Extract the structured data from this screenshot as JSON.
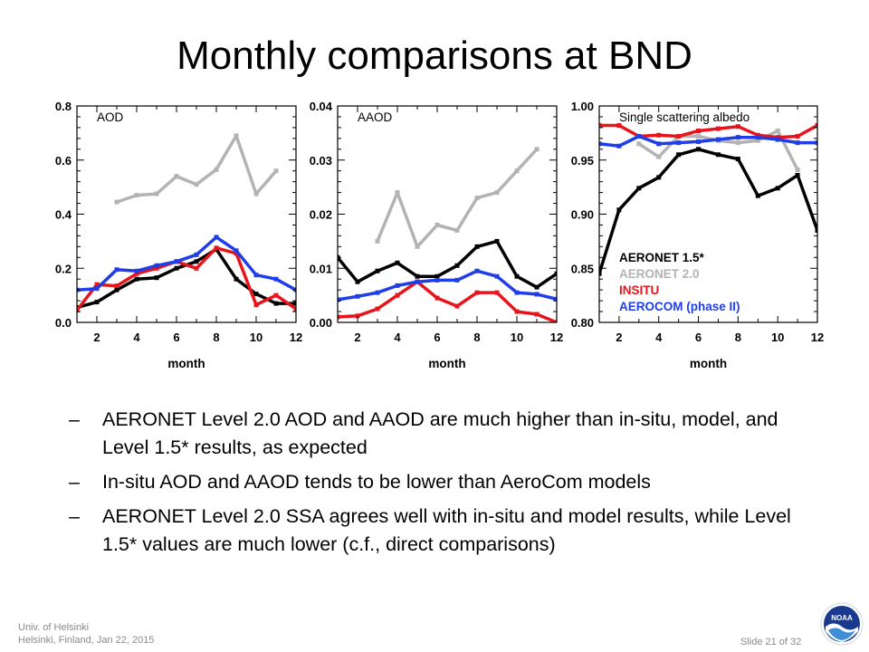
{
  "slide": {
    "title": "Monthly comparisons at BND",
    "bullets": [
      "AERONET Level 2.0 AOD and AAOD are much higher than in-situ, model, and Level 1.5* results, as expected",
      "In-situ AOD and AAOD tends to be lower than AeroCom models",
      "AERONET Level 2.0 SSA agrees well with in-situ and model results, while Level 1.5* values are much lower (c.f., direct comparisons)"
    ],
    "bullet_marker": "–",
    "footer": {
      "affiliation": "Univ. of Helsinki",
      "location_date": "Helsinki, Finland, Jan 22, 2015",
      "slide_number": "Slide 21 of 32"
    },
    "logo_text": "NOAA"
  },
  "chart_data": [
    {
      "type": "line",
      "title": "AOD",
      "xlabel": "month",
      "ylabel": "",
      "xlim": [
        1,
        12
      ],
      "ylim": [
        0.0,
        0.8
      ],
      "xticks": [
        2,
        4,
        6,
        8,
        10,
        12
      ],
      "yticks": [
        0.0,
        0.2,
        0.4,
        0.6,
        0.8
      ],
      "ytick_labels": [
        "0.0",
        "0.2",
        "0.4",
        "0.6",
        "0.8"
      ],
      "series": [
        {
          "name": "AERONET 1.5*",
          "color": "#000000",
          "x": [
            1,
            2,
            3,
            4,
            5,
            6,
            7,
            8,
            9,
            10,
            11,
            12
          ],
          "y": [
            0.055,
            0.075,
            0.12,
            0.16,
            0.165,
            0.2,
            0.225,
            0.27,
            0.16,
            0.105,
            0.07,
            0.07
          ]
        },
        {
          "name": "AERONET 2.0",
          "color": "#b3b3b3",
          "x": [
            3,
            4,
            5,
            6,
            7,
            8,
            9,
            10,
            11
          ],
          "y": [
            0.445,
            0.47,
            0.475,
            0.54,
            0.51,
            0.565,
            0.69,
            0.475,
            0.56
          ]
        },
        {
          "name": "INSITU",
          "color": "#e8141c",
          "x": [
            1,
            2,
            3,
            4,
            5,
            6,
            7,
            8,
            9,
            10,
            11,
            12
          ],
          "y": [
            0.045,
            0.14,
            0.135,
            0.18,
            0.2,
            0.225,
            0.2,
            0.275,
            0.255,
            0.065,
            0.1,
            0.05
          ]
        },
        {
          "name": "AEROCOM (phase II)",
          "color": "#1f3ee8",
          "x": [
            1,
            2,
            3,
            4,
            5,
            6,
            7,
            8,
            9,
            10,
            11,
            12
          ],
          "y": [
            0.12,
            0.125,
            0.195,
            0.19,
            0.21,
            0.225,
            0.25,
            0.315,
            0.265,
            0.175,
            0.16,
            0.12
          ]
        }
      ]
    },
    {
      "type": "line",
      "title": "AAOD",
      "xlabel": "month",
      "ylabel": "",
      "xlim": [
        1,
        12
      ],
      "ylim": [
        0.0,
        0.04
      ],
      "xticks": [
        2,
        4,
        6,
        8,
        10,
        12
      ],
      "yticks": [
        0.0,
        0.01,
        0.02,
        0.03,
        0.04
      ],
      "ytick_labels": [
        "0.00",
        "0.01",
        "0.02",
        "0.03",
        "0.04"
      ],
      "series": [
        {
          "name": "AERONET 1.5*",
          "color": "#000000",
          "x": [
            1,
            2,
            3,
            4,
            5,
            6,
            7,
            8,
            9,
            10,
            11,
            12
          ],
          "y": [
            0.012,
            0.0075,
            0.0095,
            0.011,
            0.0085,
            0.0085,
            0.0105,
            0.014,
            0.015,
            0.0085,
            0.0065,
            0.009
          ]
        },
        {
          "name": "AERONET 2.0",
          "color": "#b3b3b3",
          "x": [
            3,
            4,
            5,
            6,
            7,
            8,
            9,
            10,
            11
          ],
          "y": [
            0.015,
            0.024,
            0.014,
            0.018,
            0.017,
            0.023,
            0.024,
            0.028,
            0.032
          ]
        },
        {
          "name": "INSITU",
          "color": "#e8141c",
          "x": [
            1,
            2,
            3,
            4,
            5,
            6,
            7,
            8,
            9,
            10,
            11,
            12
          ],
          "y": [
            0.001,
            0.0012,
            0.0025,
            0.005,
            0.0075,
            0.0045,
            0.003,
            0.0055,
            0.0055,
            0.002,
            0.0015,
            0.0
          ]
        },
        {
          "name": "AEROCOM (phase II)",
          "color": "#1f3ee8",
          "x": [
            1,
            2,
            3,
            4,
            5,
            6,
            7,
            8,
            9,
            10,
            11,
            12
          ],
          "y": [
            0.0042,
            0.0048,
            0.0055,
            0.0068,
            0.0075,
            0.0078,
            0.0078,
            0.0095,
            0.0085,
            0.0055,
            0.0052,
            0.0043
          ]
        }
      ]
    },
    {
      "type": "line",
      "title": "Single scattering albedo",
      "xlabel": "month",
      "ylabel": "",
      "xlim": [
        1,
        12
      ],
      "ylim": [
        0.8,
        1.0
      ],
      "xticks": [
        2,
        4,
        6,
        8,
        10,
        12
      ],
      "yticks": [
        0.8,
        0.85,
        0.9,
        0.95,
        1.0
      ],
      "ytick_labels": [
        "0.80",
        "0.85",
        "0.90",
        "0.95",
        "1.00"
      ],
      "legend_position": "bottom-right",
      "series": [
        {
          "name": "AERONET 1.5*",
          "color": "#000000",
          "x": [
            1,
            2,
            3,
            4,
            5,
            6,
            7,
            8,
            9,
            10,
            11,
            12
          ],
          "y": [
            0.845,
            0.904,
            0.924,
            0.934,
            0.955,
            0.96,
            0.955,
            0.951,
            0.917,
            0.924,
            0.936,
            0.885
          ]
        },
        {
          "name": "AERONET 2.0",
          "color": "#b3b3b3",
          "x": [
            3,
            4,
            5,
            6,
            7,
            8,
            9,
            10,
            11
          ],
          "y": [
            0.965,
            0.953,
            0.972,
            0.972,
            0.968,
            0.966,
            0.968,
            0.977,
            0.941
          ]
        },
        {
          "name": "INSITU",
          "color": "#e8141c",
          "x": [
            1,
            2,
            3,
            4,
            5,
            6,
            7,
            8,
            9,
            10,
            11,
            12
          ],
          "y": [
            0.982,
            0.982,
            0.972,
            0.973,
            0.972,
            0.977,
            0.979,
            0.981,
            0.973,
            0.971,
            0.972,
            0.982
          ]
        },
        {
          "name": "AEROCOM (phase II)",
          "color": "#1f3ee8",
          "x": [
            1,
            2,
            3,
            4,
            5,
            6,
            7,
            8,
            9,
            10,
            11,
            12
          ],
          "y": [
            0.965,
            0.963,
            0.972,
            0.965,
            0.966,
            0.967,
            0.969,
            0.971,
            0.971,
            0.969,
            0.966,
            0.966
          ]
        }
      ]
    }
  ]
}
